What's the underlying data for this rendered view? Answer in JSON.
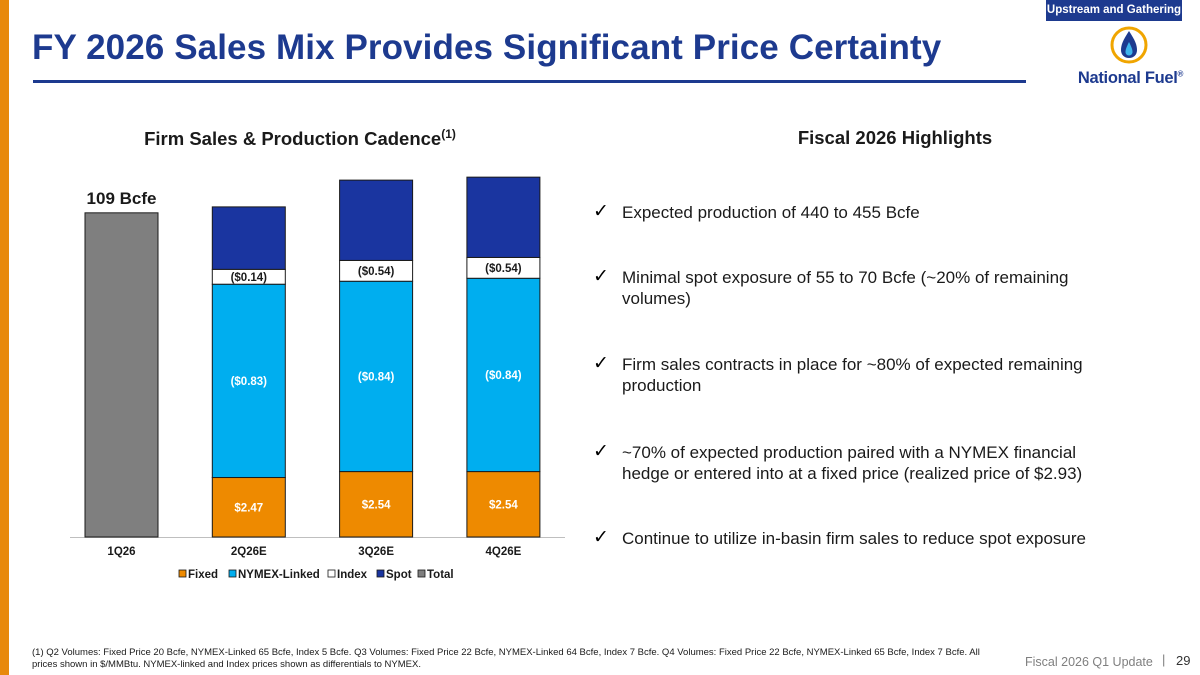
{
  "section_tag": "Upstream and Gathering",
  "title": "FY 2026 Sales Mix Provides Significant Price Certainty",
  "logo": {
    "name": "National Fuel",
    "mark": "®"
  },
  "chart_heading": {
    "text": "Firm Sales & Production Cadence",
    "sup": "(1)"
  },
  "highlights_heading": "Fiscal 2026 Highlights",
  "highlights": [
    {
      "text": "Expected production of 440 to 455 Bcfe"
    },
    {
      "text": "Minimal spot exposure of 55 to 70 Bcfe (~20% of remaining volumes)"
    },
    {
      "text": "Firm sales contracts in place for ~80% of expected remaining production"
    },
    {
      "text": "~70% of expected production paired with a NYMEX financial hedge or entered into at a fixed price (realized price of $2.93)"
    },
    {
      "text": "Continue to utilize in-basin firm sales to reduce spot exposure"
    }
  ],
  "check_glyph": "✓",
  "chart_data": {
    "type": "bar",
    "stacked": true,
    "title": "Firm Sales & Production Cadence(1)",
    "categories": [
      "1Q26",
      "2Q26E",
      "3Q26E",
      "4Q26E"
    ],
    "unit": "Bcfe",
    "series": [
      {
        "name": "Fixed",
        "color": "#ee8a00",
        "values": [
          null,
          20,
          22,
          22
        ],
        "labels": [
          "",
          "$2.47",
          "$2.54",
          "$2.54"
        ]
      },
      {
        "name": "NYMEX-Linked",
        "color": "#00aeef",
        "values": [
          null,
          65,
          64,
          65
        ],
        "labels": [
          "",
          "($0.83)",
          "($0.84)",
          "($0.84)"
        ]
      },
      {
        "name": "Index",
        "color": "#ffffff",
        "values": [
          null,
          5,
          7,
          7
        ],
        "labels": [
          "",
          "($0.14)",
          "($0.54)",
          "($0.54)"
        ]
      },
      {
        "name": "Spot",
        "color": "#1a35a0",
        "values": [
          null,
          21,
          27,
          27
        ],
        "labels": [
          "",
          "",
          "",
          ""
        ]
      },
      {
        "name": "Total",
        "color": "#7f7f7f",
        "values": [
          109,
          null,
          null,
          null
        ],
        "labels": [
          "109 Bcfe",
          "",
          "",
          ""
        ]
      }
    ],
    "ylim": [
      0,
      120
    ],
    "legend": "bottom",
    "xlabel": "",
    "ylabel": ""
  },
  "footnote": "(1) Q2 Volumes: Fixed Price 20 Bcfe, NYMEX-Linked 65 Bcfe, Index 5 Bcfe. Q3 Volumes: Fixed Price 22 Bcfe, NYMEX-Linked 64 Bcfe, Index 7 Bcfe. Q4 Volumes: Fixed Price 22 Bcfe, NYMEX-Linked 65 Bcfe, Index 7 Bcfe.  All prices shown in $/MMBtu.  NYMEX-linked and Index prices shown as differentials to NYMEX.",
  "footer": {
    "label": "Fiscal 2026 Q1 Update",
    "separator": "|",
    "page": "29"
  }
}
